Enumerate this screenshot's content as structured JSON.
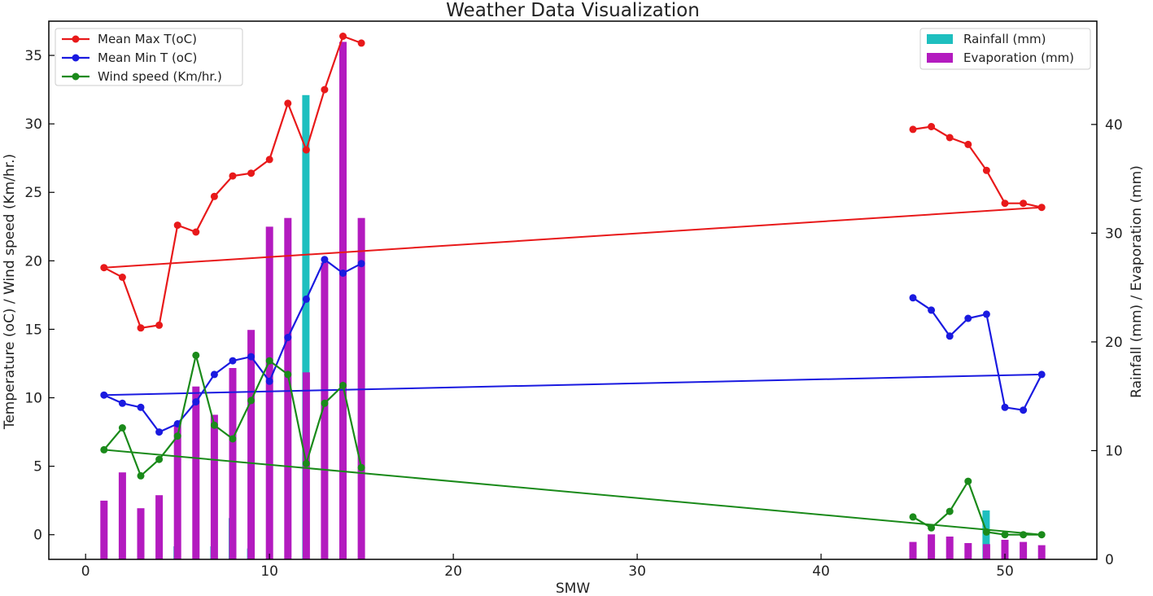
{
  "chart_data": {
    "type": "line",
    "title": "Weather Data Visualization",
    "xlabel": "SMW",
    "ylabel_left": "Temperature (oC) / Wind speed (Km/hr.)",
    "ylabel_right": "Rainfall (mm) / Evaporation (mm)",
    "xlim": [
      -2,
      55
    ],
    "ylim_left": [
      -1.8,
      37.5
    ],
    "ylim_right": [
      0,
      49.5
    ],
    "x_ticks": [
      "0",
      "10",
      "20",
      "30",
      "40",
      "50"
    ],
    "y_left_ticks": [
      "0",
      "5",
      "10",
      "15",
      "20",
      "25",
      "30",
      "35"
    ],
    "y_right_ticks": [
      "0",
      "10",
      "20",
      "30",
      "40"
    ],
    "line_series": [
      {
        "name": "Mean Max T(oC)",
        "color": "#e8191a",
        "x": [
          1,
          2,
          3,
          4,
          5,
          6,
          7,
          8,
          9,
          10,
          11,
          12,
          13,
          14,
          15,
          45,
          46,
          47,
          48,
          49,
          50,
          51,
          52
        ],
        "y": [
          19.5,
          18.8,
          15.1,
          15.3,
          22.6,
          22.1,
          24.7,
          26.2,
          26.4,
          27.4,
          31.5,
          28.1,
          32.5,
          36.4,
          35.9,
          29.6,
          29.8,
          29.0,
          28.5,
          26.6,
          24.2,
          24.2,
          23.9
        ]
      },
      {
        "name": "Mean Min T (oC)",
        "color": "#1a1ae0",
        "x": [
          1,
          2,
          3,
          4,
          5,
          6,
          7,
          8,
          9,
          10,
          11,
          12,
          13,
          14,
          15,
          45,
          46,
          47,
          48,
          49,
          50,
          51,
          52
        ],
        "y": [
          10.2,
          9.6,
          9.3,
          7.5,
          8.1,
          9.7,
          11.7,
          12.7,
          13.0,
          11.2,
          14.4,
          17.2,
          20.1,
          19.1,
          19.8,
          17.3,
          16.4,
          14.5,
          15.8,
          16.1,
          9.3,
          9.1,
          11.7
        ]
      },
      {
        "name": "Wind speed (Km/hr.)",
        "color": "#1a8a1a",
        "x": [
          1,
          2,
          3,
          4,
          5,
          6,
          7,
          8,
          9,
          10,
          11,
          12,
          13,
          14,
          15,
          45,
          46,
          47,
          48,
          49,
          50,
          51,
          52
        ],
        "y": [
          6.2,
          7.8,
          4.3,
          5.5,
          7.2,
          13.1,
          8.0,
          7.0,
          9.8,
          12.7,
          11.7,
          5.2,
          9.6,
          10.9,
          4.9,
          1.3,
          0.5,
          1.7,
          3.9,
          0.2,
          0.0,
          0.0,
          0.0
        ]
      }
    ],
    "trend_lines": [
      {
        "series": "Mean Max T(oC)",
        "color": "#e8191a",
        "x": [
          1,
          52
        ],
        "y": [
          19.5,
          23.9
        ]
      },
      {
        "series": "Mean Min T (oC)",
        "color": "#1a1ae0",
        "x": [
          1,
          52
        ],
        "y": [
          10.2,
          11.7
        ]
      },
      {
        "series": "Wind speed (Km/hr.)",
        "color": "#1a8a1a",
        "x": [
          1,
          52
        ],
        "y": [
          6.2,
          0.0
        ]
      }
    ],
    "bar_series": [
      {
        "name": "Rainfall (mm)",
        "color": "#1ebfbf",
        "x": [
          5,
          7,
          8,
          9,
          12,
          49
        ],
        "values": [
          1.2,
          1.2,
          3.8,
          1.0,
          42.7,
          4.5
        ]
      },
      {
        "name": "Evaporation (mm)",
        "color": "#b31bbf",
        "x": [
          1,
          2,
          3,
          4,
          5,
          6,
          7,
          8,
          9,
          10,
          11,
          12,
          13,
          14,
          15,
          45,
          46,
          47,
          48,
          49,
          50,
          51,
          52
        ],
        "values": [
          5.4,
          8.0,
          4.7,
          5.9,
          12.5,
          15.9,
          13.3,
          17.6,
          21.1,
          30.6,
          31.4,
          17.2,
          27.3,
          47.6,
          31.4,
          1.6,
          2.3,
          2.1,
          1.5,
          1.4,
          1.8,
          1.6,
          1.3
        ]
      }
    ],
    "legend_left_placement": "top-left",
    "legend_right_placement": "top-right",
    "grid": false
  }
}
